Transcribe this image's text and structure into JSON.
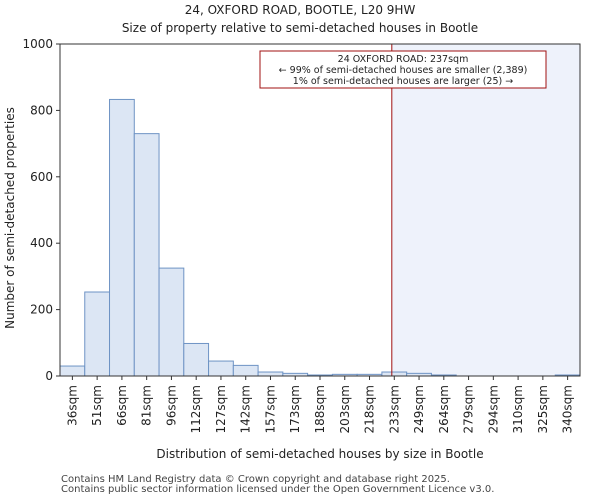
{
  "chart_data": {
    "type": "bar",
    "title": "24, OXFORD ROAD, BOOTLE, L20 9HW",
    "subtitle": "Size of property relative to semi-detached houses in Bootle",
    "xlabel": "Distribution of semi-detached houses by size in Bootle",
    "ylabel": "Number of semi-detached properties",
    "ylim": [
      0,
      1000
    ],
    "yticks": [
      0,
      200,
      400,
      600,
      800,
      1000
    ],
    "categories": [
      "36sqm",
      "51sqm",
      "66sqm",
      "81sqm",
      "96sqm",
      "112sqm",
      "127sqm",
      "142sqm",
      "157sqm",
      "173sqm",
      "188sqm",
      "203sqm",
      "218sqm",
      "233sqm",
      "249sqm",
      "264sqm",
      "279sqm",
      "294sqm",
      "310sqm",
      "325sqm",
      "340sqm"
    ],
    "values": [
      30,
      253,
      833,
      730,
      325,
      98,
      45,
      32,
      12,
      8,
      3,
      5,
      5,
      12,
      8,
      3,
      0,
      0,
      0,
      0,
      3
    ],
    "marker": {
      "value": 237,
      "label": "24 OXFORD ROAD: 237sqm"
    },
    "annotation_lines": [
      "24 OXFORD ROAD: 237sqm",
      "← 99% of semi-detached houses are smaller (2,389)",
      "1% of semi-detached houses are larger (25) →"
    ],
    "bar_color": "#dce6f4",
    "bar_edge": "#6e93c4",
    "marker_color": "#a01010",
    "highlight_color": "#eef2fb"
  },
  "footer": {
    "line1": "Contains HM Land Registry data © Crown copyright and database right 2025.",
    "line2": "Contains public sector information licensed under the Open Government Licence v3.0."
  }
}
